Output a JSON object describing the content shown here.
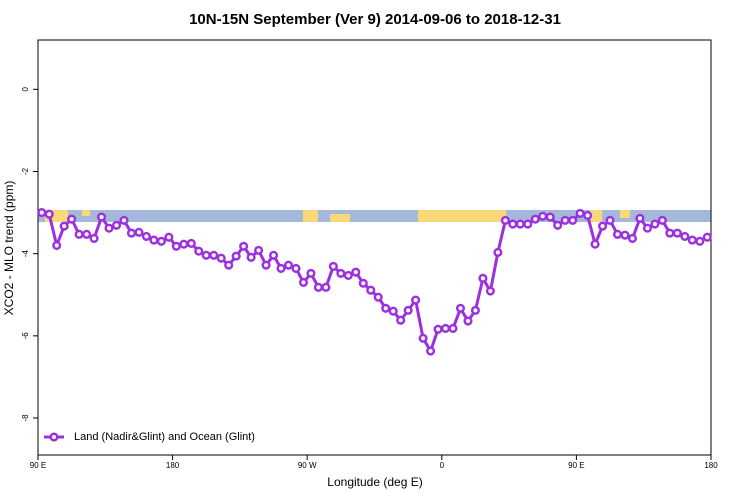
{
  "chart_data": {
    "type": "line",
    "title": "10N-15N September (Ver 9)   2014-09-06 to 2018-12-31",
    "xlabel": "Longitude (deg E)",
    "ylabel": "XCO2 - MLO trend (ppm)",
    "x": [
      92.5,
      97.5,
      102.5,
      107.5,
      112.5,
      117.5,
      122.5,
      127.5,
      132.5,
      137.5,
      142.5,
      147.5,
      152.5,
      157.5,
      162.5,
      167.5,
      172.5,
      177.5,
      182.5,
      187.5,
      192.5,
      197.5,
      202.5,
      207.5,
      212.5,
      217.5,
      222.5,
      227.5,
      232.5,
      237.5,
      242.5,
      247.5,
      252.5,
      257.5,
      262.5,
      267.5,
      272.5,
      277.5,
      282.5,
      287.5,
      292.5,
      297.5,
      302.5,
      307.5,
      312.5,
      317.5,
      322.5,
      327.5,
      332.5,
      337.5,
      342.5,
      347.5,
      352.5,
      357.5,
      362.5,
      367.5,
      372.5,
      377.5,
      382.5,
      387.5,
      392.5,
      397.5,
      402.5,
      407.5,
      412.5,
      417.5,
      422.5,
      427.5,
      432.5,
      437.5,
      442.5,
      447.5,
      452.5,
      457.5,
      462.5,
      467.5,
      472.5,
      477.5,
      482.5,
      487.5,
      492.5,
      497.5,
      502.5,
      507.5,
      512.5,
      517.5,
      522.5,
      527.5,
      532.5,
      537.5
    ],
    "series": [
      {
        "name": "Land (Nadir&Glint) and Ocean (Glint)",
        "color": "#9b30e0",
        "values": [
          -3.0,
          -3.04,
          -3.8,
          -3.33,
          -3.16,
          -3.53,
          -3.53,
          -3.63,
          -3.11,
          -3.38,
          -3.31,
          -3.19,
          -3.5,
          -3.48,
          -3.58,
          -3.67,
          -3.7,
          -3.6,
          -3.82,
          -3.77,
          -3.75,
          -3.94,
          -4.04,
          -4.04,
          -4.11,
          -4.28,
          -4.06,
          -3.82,
          -4.09,
          -3.92,
          -4.28,
          -4.04,
          -4.36,
          -4.28,
          -4.36,
          -4.7,
          -4.48,
          -4.82,
          -4.82,
          -4.31,
          -4.48,
          -4.53,
          -4.45,
          -4.72,
          -4.89,
          -5.06,
          -5.33,
          -5.4,
          -5.62,
          -5.38,
          -5.13,
          -6.06,
          -6.37,
          -5.84,
          -5.82,
          -5.82,
          -5.33,
          -5.64,
          -5.38,
          -4.6,
          -4.91,
          -3.97,
          -3.19,
          -3.28,
          -3.28,
          -3.28,
          -3.16,
          -3.09,
          -3.11,
          -3.31,
          -3.19,
          -3.19,
          -3.02,
          -3.07,
          -3.77,
          -3.33,
          -3.19,
          -3.53,
          -3.55,
          -3.63,
          -3.14,
          -3.38,
          -3.28,
          -3.19,
          -3.5,
          -3.5,
          -3.58,
          -3.67,
          -3.7,
          -3.6
        ]
      }
    ],
    "xlim": [
      90,
      540
    ],
    "xticks": [
      {
        "value": 90,
        "label": "90 E"
      },
      180,
      {
        "value": 270,
        "label": "90 W"
      },
      {
        "value": 360,
        "label": "0"
      },
      {
        "value": 450,
        "label": "90 E"
      },
      {
        "value": 540,
        "label": "180"
      }
    ],
    "ylim": [
      -8.9,
      1.2
    ],
    "yticks": [
      0,
      -2,
      -4,
      -6,
      -8
    ],
    "legend": "bottom-left"
  }
}
